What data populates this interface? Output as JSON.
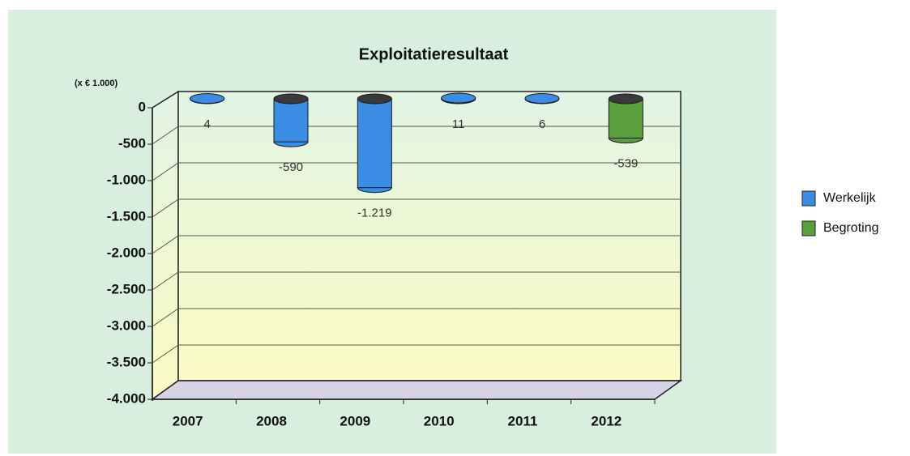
{
  "chart_data": {
    "type": "bar3d",
    "title": "Exploitatieresultaat",
    "y_unit_label": "(x € 1.000)",
    "categories": [
      "2007",
      "2008",
      "2009",
      "2010",
      "2011",
      "2012"
    ],
    "series": [
      {
        "name": "Werkelijk",
        "color": "#3b8de3",
        "values": [
          4,
          -590,
          -1219,
          11,
          6,
          null
        ],
        "value_labels": [
          "4",
          "-590",
          "-1.219",
          "11",
          "6",
          null
        ]
      },
      {
        "name": "Begroting",
        "color": "#5a9e3e",
        "values": [
          null,
          null,
          null,
          null,
          null,
          -539
        ],
        "value_labels": [
          null,
          null,
          null,
          null,
          null,
          "-539"
        ]
      }
    ],
    "ylim": [
      -4000,
      0
    ],
    "yticks": [
      0,
      -500,
      {
        "value": -1000,
        "label": "-1.000"
      },
      {
        "value": -1500,
        "label": "-1.500"
      },
      {
        "value": -2000,
        "label": "-2.000"
      },
      {
        "value": -2500,
        "label": "-2.500"
      },
      {
        "value": -3000,
        "label": "-3.000"
      },
      {
        "value": -3500,
        "label": "-3.500"
      },
      {
        "value": -4000,
        "label": "-4.000"
      }
    ],
    "grid": true,
    "legend": "right"
  }
}
